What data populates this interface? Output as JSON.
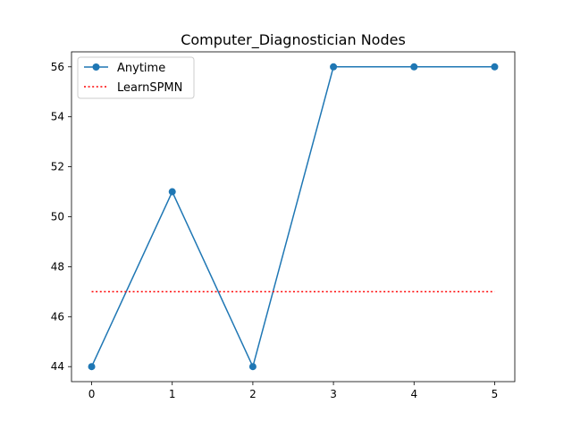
{
  "chart_data": {
    "type": "line",
    "title": "Computer_Diagnostician Nodes",
    "xlabel": "",
    "ylabel": "",
    "xlim": [
      -0.25,
      5.25
    ],
    "ylim": [
      43.4,
      56.6
    ],
    "xticks": [
      0,
      1,
      2,
      3,
      4,
      5
    ],
    "yticks": [
      44,
      46,
      48,
      50,
      52,
      54,
      56
    ],
    "grid": false,
    "legend_position": "top-left",
    "series": [
      {
        "name": "Anytime",
        "style": "solid-with-markers",
        "color": "#1f77b4",
        "x": [
          0,
          1,
          2,
          3,
          4,
          5
        ],
        "y": [
          44,
          51,
          44,
          56,
          56,
          56
        ]
      },
      {
        "name": "LearnSPMN",
        "style": "dotted",
        "color": "#ff0000",
        "x": [
          0,
          5
        ],
        "y": [
          47,
          47
        ]
      }
    ]
  }
}
